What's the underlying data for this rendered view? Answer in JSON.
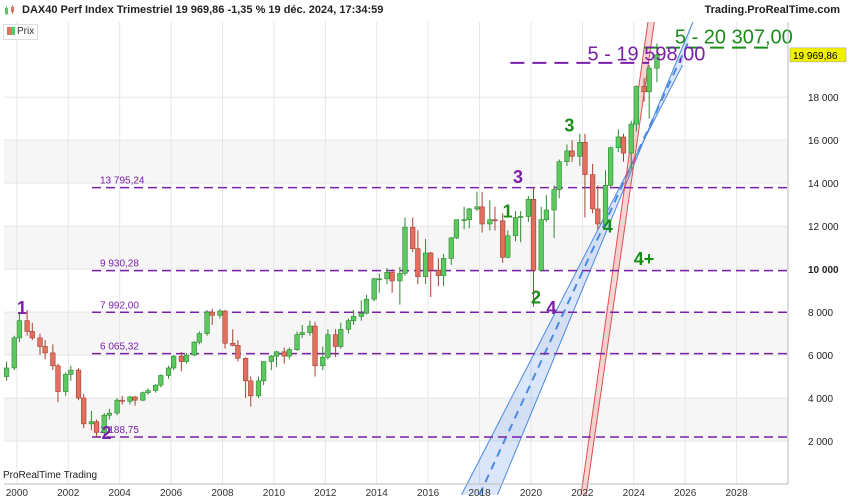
{
  "header": {
    "title": "DAX40 Perf Index Trimestriel 19 969,86 -1,35 % 19 déc. 2024, 17:34:59",
    "brand": "Trading.ProRealTime.com"
  },
  "legend": {
    "label": "Prix"
  },
  "footer": {
    "brand": "ProRealTime Trading"
  },
  "colors": {
    "up": "#5cc860",
    "down": "#e07060",
    "level_line": "#7a1fa8",
    "label_purple": "#7a1fa8",
    "label_green": "#1a8c1a",
    "channel_blue": "#4a8ae0",
    "channel_red": "#e05050",
    "grid": "#e6e6e6"
  },
  "chart_data": {
    "type": "candlestick",
    "xlim": [
      1999.5,
      2030.0
    ],
    "ylim": [
      0,
      21500
    ],
    "x_ticks": [
      "2000",
      "2002",
      "2004",
      "2006",
      "2008",
      "2010",
      "2012",
      "2014",
      "2016",
      "2018",
      "2020",
      "2022",
      "2024",
      "2026",
      "2028"
    ],
    "y_ticks": [
      2000,
      4000,
      6000,
      8000,
      10000,
      12000,
      14000,
      16000,
      18000
    ],
    "y_tick_labels": [
      "2 000",
      "4 000",
      "6 000",
      "8 000",
      "10 000",
      "12 000",
      "14 000",
      "16 000",
      "18 000"
    ],
    "last_value": 19969.86,
    "last_value_label": "19 969,86",
    "levels": [
      {
        "value": 13795.24,
        "label": "13 795,24"
      },
      {
        "value": 9930.28,
        "label": "9 930,28"
      },
      {
        "value": 7992.0,
        "label": "7 992,00"
      },
      {
        "value": 6065.32,
        "label": "6 065,32"
      },
      {
        "value": 2188.75,
        "label": "2 188,75"
      }
    ],
    "annotations": [
      {
        "text": "1",
        "x": 2000.0,
        "y": 7900,
        "color": "purple"
      },
      {
        "text": "2",
        "x": 2003.3,
        "y": 2100,
        "color": "purple"
      },
      {
        "text": "1",
        "x": 2018.9,
        "y": 12400,
        "color": "green"
      },
      {
        "text": "3",
        "x": 2019.3,
        "y": 14000,
        "color": "purple"
      },
      {
        "text": "2",
        "x": 2020.0,
        "y": 8400,
        "color": "green"
      },
      {
        "text": "4",
        "x": 2020.6,
        "y": 7900,
        "color": "purple"
      },
      {
        "text": "3",
        "x": 2021.3,
        "y": 16400,
        "color": "green"
      },
      {
        "text": "4",
        "x": 2022.8,
        "y": 11700,
        "color": "green"
      },
      {
        "text": "4+",
        "x": 2024.0,
        "y": 10200,
        "color": "green"
      },
      {
        "text": "5 - 19 598,00",
        "x": 2022.2,
        "y": 19700,
        "color": "purple"
      },
      {
        "text": "5 - 20 307,00",
        "x": 2025.6,
        "y": 20500,
        "color": "green"
      }
    ],
    "target_lines": [
      {
        "value": 19598,
        "x_from": 2019.2,
        "x_to": 2024.6,
        "color": "purple"
      },
      {
        "value": 20307,
        "x_from": 2024.4,
        "x_to": 2029.3,
        "color": "green"
      }
    ],
    "channels": [
      {
        "name": "blue",
        "lower": [
          [
            2017.3,
            -500
          ],
          [
            2025.9,
            19500
          ]
        ],
        "upper": [
          [
            2018.7,
            -500
          ],
          [
            2026.3,
            21500
          ]
        ],
        "mid": [
          [
            2018.0,
            -500
          ],
          [
            2026.1,
            20500
          ]
        ]
      },
      {
        "name": "red",
        "lower": [
          [
            2021.95,
            -500
          ],
          [
            2024.55,
            21500
          ]
        ],
        "upper": [
          [
            2022.15,
            -500
          ],
          [
            2024.8,
            21500
          ]
        ]
      }
    ],
    "candles": [
      [
        1999.6,
        5000,
        5700,
        4800,
        5400
      ],
      [
        1999.9,
        5400,
        6900,
        5300,
        6800
      ],
      [
        2000.1,
        6800,
        8000,
        6600,
        7600
      ],
      [
        2000.4,
        7600,
        8100,
        6900,
        7100
      ],
      [
        2000.6,
        7100,
        7500,
        6700,
        6800
      ],
      [
        2000.9,
        6800,
        7000,
        6000,
        6400
      ],
      [
        2001.1,
        6400,
        6700,
        5800,
        6100
      ],
      [
        2001.4,
        6100,
        6500,
        5300,
        5500
      ],
      [
        2001.6,
        5500,
        5600,
        3800,
        4300
      ],
      [
        2001.9,
        4300,
        5200,
        4100,
        5100
      ],
      [
        2002.1,
        5100,
        5500,
        4800,
        5300
      ],
      [
        2002.4,
        5300,
        5400,
        3900,
        4000
      ],
      [
        2002.6,
        4000,
        4200,
        2600,
        2800
      ],
      [
        2002.9,
        2800,
        3400,
        2500,
        2900
      ],
      [
        2003.1,
        2900,
        3000,
        2188,
        2400
      ],
      [
        2003.4,
        2400,
        3300,
        2300,
        3200
      ],
      [
        2003.6,
        3200,
        3500,
        3000,
        3300
      ],
      [
        2003.9,
        3300,
        4000,
        3200,
        3900
      ],
      [
        2004.1,
        3900,
        4100,
        3700,
        3850
      ],
      [
        2004.4,
        3850,
        4100,
        3700,
        4050
      ],
      [
        2004.6,
        4050,
        4100,
        3650,
        3900
      ],
      [
        2004.9,
        3900,
        4300,
        3850,
        4250
      ],
      [
        2005.1,
        4250,
        4450,
        4150,
        4350
      ],
      [
        2005.4,
        4350,
        4650,
        4250,
        4600
      ],
      [
        2005.6,
        4600,
        5100,
        4500,
        5050
      ],
      [
        2005.9,
        5050,
        5500,
        4900,
        5400
      ],
      [
        2006.1,
        5400,
        6000,
        5300,
        5950
      ],
      [
        2006.4,
        5950,
        6150,
        5250,
        5700
      ],
      [
        2006.6,
        5700,
        6100,
        5600,
        6000
      ],
      [
        2006.9,
        6000,
        6650,
        5950,
        6600
      ],
      [
        2007.1,
        6600,
        7100,
        6500,
        7000
      ],
      [
        2007.4,
        7000,
        8100,
        6900,
        8000
      ],
      [
        2007.6,
        8000,
        8150,
        7400,
        7850
      ],
      [
        2007.9,
        7850,
        8150,
        7700,
        8050
      ],
      [
        2008.1,
        8050,
        8100,
        6300,
        6550
      ],
      [
        2008.4,
        6550,
        7200,
        6400,
        6450
      ],
      [
        2008.6,
        6450,
        6700,
        5700,
        5850
      ],
      [
        2008.9,
        5850,
        5900,
        4000,
        4800
      ],
      [
        2009.1,
        4800,
        5000,
        3600,
        4100
      ],
      [
        2009.4,
        4100,
        5000,
        4000,
        4800
      ],
      [
        2009.6,
        4800,
        5700,
        4600,
        5700
      ],
      [
        2009.9,
        5700,
        6000,
        5300,
        5950
      ],
      [
        2010.1,
        5950,
        6200,
        5450,
        6150
      ],
      [
        2010.4,
        6150,
        6350,
        5600,
        5950
      ],
      [
        2010.6,
        5950,
        6350,
        5800,
        6250
      ],
      [
        2010.9,
        6250,
        7100,
        6200,
        6950
      ],
      [
        2011.1,
        6950,
        7400,
        6800,
        7050
      ],
      [
        2011.4,
        7050,
        7600,
        6900,
        7350
      ],
      [
        2011.6,
        7350,
        7550,
        5000,
        5500
      ],
      [
        2011.9,
        5500,
        6400,
        5300,
        5900
      ],
      [
        2012.1,
        5900,
        7200,
        5800,
        6950
      ],
      [
        2012.4,
        6950,
        7200,
        5900,
        6400
      ],
      [
        2012.6,
        6400,
        7500,
        6300,
        7200
      ],
      [
        2012.9,
        7200,
        7700,
        7000,
        7600
      ],
      [
        2013.1,
        7600,
        8100,
        7400,
        7800
      ],
      [
        2013.4,
        7800,
        8550,
        7600,
        7950
      ],
      [
        2013.6,
        7950,
        8800,
        7900,
        8600
      ],
      [
        2013.9,
        8600,
        9600,
        8500,
        9550
      ],
      [
        2014.1,
        9550,
        9800,
        8900,
        9550
      ],
      [
        2014.4,
        9550,
        10050,
        9300,
        9850
      ],
      [
        2014.6,
        9850,
        10000,
        8900,
        9450
      ],
      [
        2014.9,
        9450,
        10100,
        8350,
        9800
      ],
      [
        2015.1,
        9800,
        12400,
        9700,
        11950
      ],
      [
        2015.4,
        11950,
        12400,
        10800,
        10950
      ],
      [
        2015.6,
        10950,
        11800,
        9300,
        9650
      ],
      [
        2015.9,
        9650,
        11400,
        9300,
        10750
      ],
      [
        2016.1,
        10750,
        10800,
        8700,
        9950
      ],
      [
        2016.4,
        9950,
        10500,
        9200,
        9700
      ],
      [
        2016.6,
        9700,
        10700,
        9200,
        10500
      ],
      [
        2016.9,
        10500,
        11500,
        10200,
        11450
      ],
      [
        2017.1,
        11450,
        12300,
        11400,
        12300
      ],
      [
        2017.4,
        12300,
        12900,
        11850,
        12300
      ],
      [
        2017.6,
        12300,
        12850,
        11900,
        12800
      ],
      [
        2017.9,
        12800,
        13600,
        12700,
        12900
      ],
      [
        2018.1,
        12900,
        13600,
        11700,
        12100
      ],
      [
        2018.4,
        12100,
        13200,
        11800,
        12300
      ],
      [
        2018.6,
        12300,
        12900,
        11800,
        12250
      ],
      [
        2018.9,
        12250,
        12600,
        10300,
        10550
      ],
      [
        2019.1,
        10550,
        11800,
        10500,
        11550
      ],
      [
        2019.4,
        11550,
        12700,
        11300,
        12400
      ],
      [
        2019.6,
        12400,
        12700,
        11250,
        12450
      ],
      [
        2019.9,
        12450,
        13400,
        12200,
        13250
      ],
      [
        2020.1,
        13250,
        13800,
        8250,
        9950
      ],
      [
        2020.4,
        9950,
        12900,
        9900,
        12300
      ],
      [
        2020.6,
        12300,
        13450,
        12200,
        12750
      ],
      [
        2020.9,
        12750,
        13900,
        11450,
        13700
      ],
      [
        2021.1,
        13700,
        15100,
        13300,
        15000
      ],
      [
        2021.4,
        15000,
        15800,
        14800,
        15500
      ],
      [
        2021.6,
        15500,
        16000,
        15000,
        15250
      ],
      [
        2021.9,
        15250,
        16300,
        14800,
        15900
      ],
      [
        2022.1,
        15900,
        16300,
        12400,
        14400
      ],
      [
        2022.4,
        14400,
        14900,
        12600,
        12800
      ],
      [
        2022.6,
        12800,
        13900,
        11850,
        12100
      ],
      [
        2022.9,
        12100,
        14600,
        12000,
        13900
      ],
      [
        2023.1,
        13900,
        15700,
        13800,
        15650
      ],
      [
        2023.4,
        15650,
        16500,
        15450,
        16150
      ],
      [
        2023.6,
        16150,
        16300,
        15000,
        15400
      ],
      [
        2023.9,
        15400,
        16900,
        14650,
        16750
      ],
      [
        2024.1,
        16750,
        18550,
        16400,
        18500
      ],
      [
        2024.4,
        18500,
        18900,
        17800,
        18250
      ],
      [
        2024.6,
        18250,
        19500,
        17000,
        19350
      ],
      [
        2024.9,
        19350,
        20500,
        18700,
        19969.86
      ]
    ]
  }
}
